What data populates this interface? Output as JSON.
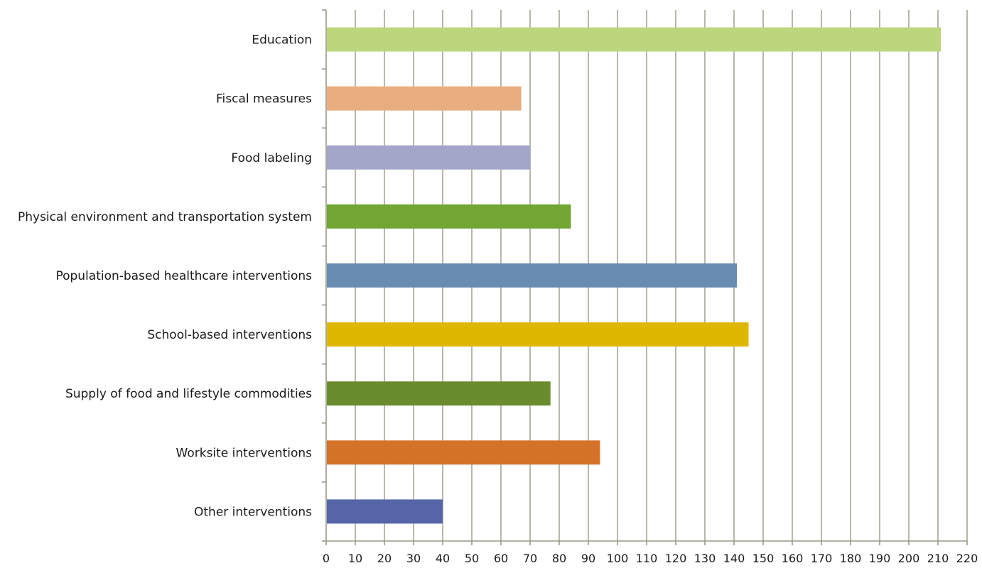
{
  "chart_data": {
    "type": "bar",
    "orientation": "horizontal",
    "title": "",
    "xlabel": "",
    "ylabel": "",
    "categories": [
      "Education",
      "Fiscal measures",
      "Food labeling",
      "Physical environment and transportation system",
      "Population-based healthcare interventions",
      "School-based interventions",
      "Supply of food and lifestyle commodities",
      "Worksite interventions",
      "Other interventions"
    ],
    "values": [
      211,
      67,
      70,
      84,
      141,
      145,
      77,
      94,
      40
    ],
    "bar_colors": [
      "#bcd67d",
      "#e9ad7f",
      "#a3a6c8",
      "#72a534",
      "#6a8bb2",
      "#dfb700",
      "#6b8c2e",
      "#d47229",
      "#5565a7"
    ],
    "xlim": [
      0,
      220
    ],
    "x_ticks": [
      0,
      10,
      20,
      30,
      40,
      50,
      60,
      70,
      80,
      90,
      100,
      110,
      120,
      130,
      140,
      150,
      160,
      170,
      180,
      190,
      200,
      210,
      220
    ],
    "grid": true,
    "legend": "none"
  }
}
